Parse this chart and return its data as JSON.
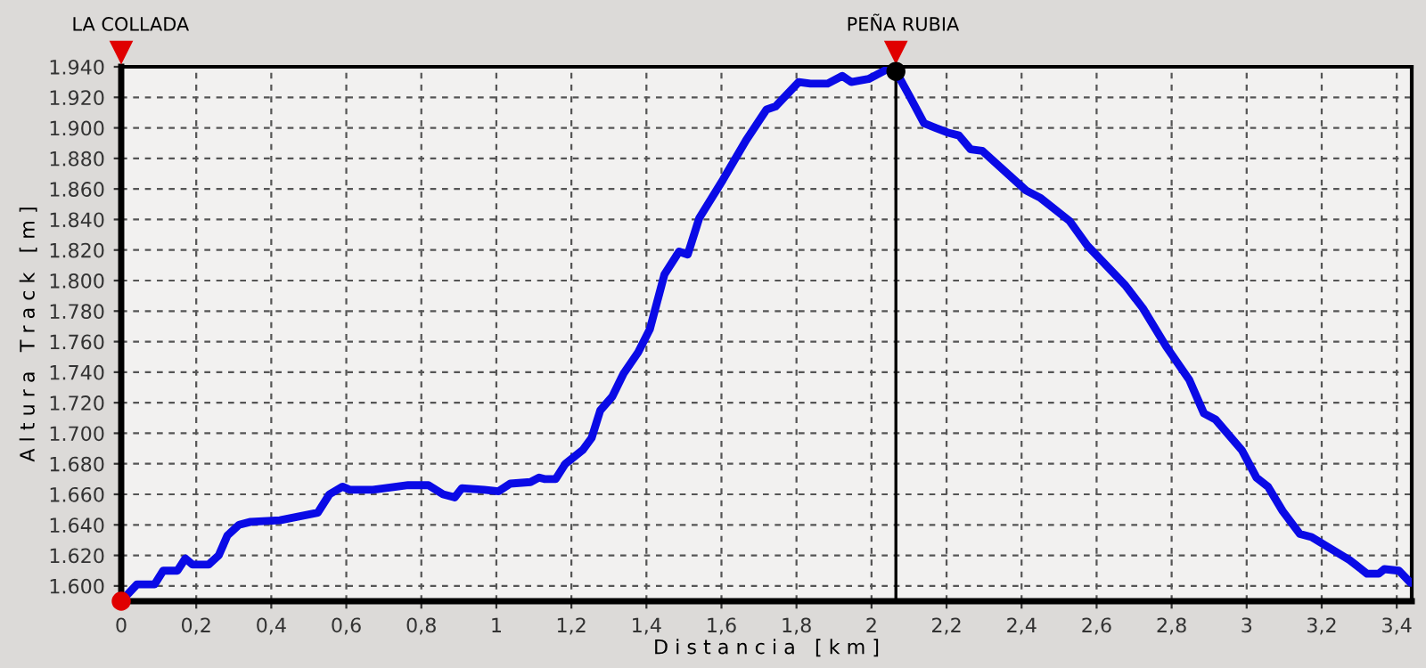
{
  "chart_data": {
    "type": "line",
    "xlabel": "D i s t a n c i a   [ k m ]",
    "ylabel": "A l t u r a   T r a c k   [ m ]",
    "series": [
      {
        "color": "#0a0ae6",
        "x": [
          0,
          0.042,
          0.089,
          0.112,
          0.15,
          0.171,
          0.19,
          0.233,
          0.26,
          0.283,
          0.314,
          0.345,
          0.423,
          0.524,
          0.555,
          0.59,
          0.609,
          0.671,
          0.703,
          0.765,
          0.819,
          0.858,
          0.889,
          0.908,
          0.967,
          1.006,
          1.037,
          1.091,
          1.114,
          1.128,
          1.158,
          1.184,
          1.23,
          1.254,
          1.277,
          1.309,
          1.339,
          1.378,
          1.409,
          1.448,
          1.487,
          1.51,
          1.541,
          1.604,
          1.666,
          1.72,
          1.744,
          1.806,
          1.837,
          1.883,
          1.922,
          1.946,
          1.992,
          2.039,
          2.065,
          2.101,
          2.14,
          2.171,
          2.202,
          2.233,
          2.264,
          2.295,
          2.412,
          2.451,
          2.528,
          2.575,
          2.676,
          2.723,
          2.785,
          2.847,
          2.886,
          2.917,
          2.987,
          3.026,
          3.057,
          3.096,
          3.142,
          3.173,
          3.22,
          3.274,
          3.321,
          3.352,
          3.367,
          3.406,
          3.437
        ],
        "values": [
          1590,
          1601,
          1601,
          1610,
          1610,
          1618,
          1614,
          1614,
          1620,
          1633,
          1640,
          1642,
          1643,
          1648,
          1660,
          1665,
          1663,
          1663,
          1664,
          1666,
          1666,
          1660,
          1658,
          1664,
          1663,
          1662,
          1667,
          1668,
          1671,
          1670,
          1670,
          1680,
          1689,
          1697,
          1715,
          1724,
          1739,
          1753,
          1768,
          1804,
          1819,
          1817,
          1841,
          1866,
          1892,
          1912,
          1914,
          1930,
          1929,
          1929,
          1934,
          1930,
          1932,
          1938,
          1937,
          1921,
          1903,
          1900,
          1897,
          1895,
          1886,
          1885,
          1859,
          1854,
          1839,
          1823,
          1797,
          1782,
          1757,
          1735,
          1713,
          1709,
          1689,
          1671,
          1665,
          1649,
          1634,
          1632,
          1625,
          1617,
          1608,
          1608,
          1611,
          1610,
          1602
        ]
      },
      {
        "type": "scatter",
        "x": [
          0,
          2.065
        ],
        "values": [
          1590,
          1937
        ],
        "colors": [
          "#e00000",
          "#000000"
        ],
        "marker": "circle"
      }
    ],
    "annotations": [
      "LA COLLADA"
    ],
    "ref_lines": [
      {
        "axis": "x",
        "value": 2.065,
        "label": "PEÑA RUBIA",
        "color": "#000000"
      }
    ],
    "xlim": [
      0,
      3.44
    ],
    "ylim": [
      1590,
      1940
    ],
    "xticks": [
      0,
      {
        "value": 0.2,
        "label": "0,2"
      },
      {
        "value": 0.4,
        "label": "0,4"
      },
      {
        "value": 0.6,
        "label": "0,6"
      },
      {
        "value": 0.8,
        "label": "0,8"
      },
      1,
      {
        "value": 1.2,
        "label": "1,2"
      },
      {
        "value": 1.4,
        "label": "1,4"
      },
      {
        "value": 1.6,
        "label": "1,6"
      },
      {
        "value": 1.8,
        "label": "1,8"
      },
      2,
      {
        "value": 2.2,
        "label": "2,2"
      },
      {
        "value": 2.4,
        "label": "2,4"
      },
      {
        "value": 2.6,
        "label": "2,6"
      },
      {
        "value": 2.8,
        "label": "2,8"
      },
      3,
      {
        "value": 3.2,
        "label": "3,2"
      },
      {
        "value": 3.4,
        "label": "3,4"
      }
    ],
    "yticks": [
      {
        "value": 1600,
        "label": "1.600"
      },
      {
        "value": 1620,
        "label": "1.620"
      },
      {
        "value": 1640,
        "label": "1.640"
      },
      {
        "value": 1660,
        "label": "1.660"
      },
      {
        "value": 1680,
        "label": "1.680"
      },
      {
        "value": 1700,
        "label": "1.700"
      },
      {
        "value": 1720,
        "label": "1.720"
      },
      {
        "value": 1740,
        "label": "1.740"
      },
      {
        "value": 1760,
        "label": "1.760"
      },
      {
        "value": 1780,
        "label": "1.780"
      },
      {
        "value": 1800,
        "label": "1.800"
      },
      {
        "value": 1820,
        "label": "1.820"
      },
      {
        "value": 1840,
        "label": "1.840"
      },
      {
        "value": 1860,
        "label": "1.860"
      },
      {
        "value": 1880,
        "label": "1.880"
      },
      {
        "value": 1900,
        "label": "1.900"
      },
      {
        "value": 1920,
        "label": "1.920"
      },
      {
        "value": 1940,
        "label": "1.940"
      }
    ],
    "grid": true,
    "line_style": "solid"
  }
}
